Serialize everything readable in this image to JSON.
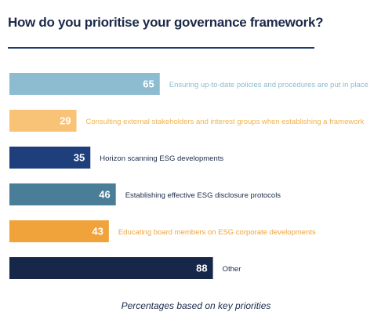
{
  "title": "How do you prioritise your governance framework?",
  "footnote": "Percentages based on key priorities",
  "chart_data": {
    "type": "bar",
    "orientation": "horizontal",
    "categories": [
      "Ensuring up-to-date policies and procedures are put in place",
      "Consulting external stakeholders and interest groups when establishing a framework",
      "Horizon scanning ESG developments",
      "Establishing effective ESG disclosure protocols",
      "Educating board members on ESG corporate developments",
      "Other"
    ],
    "values": [
      65,
      29,
      35,
      46,
      43,
      88
    ],
    "bar_colors": [
      "#8dbcd0",
      "#f9c377",
      "#1f3e7c",
      "#4a7d97",
      "#f0a33a",
      "#16274a"
    ],
    "label_colors": [
      "#8dbcd0",
      "#f0b34a",
      "#1b2a4a",
      "#1b2a4a",
      "#f0a33a",
      "#1b2a4a"
    ],
    "value_label_color": "#ffffff",
    "grid": false,
    "legend": "none",
    "xlim": [
      0,
      100
    ]
  }
}
